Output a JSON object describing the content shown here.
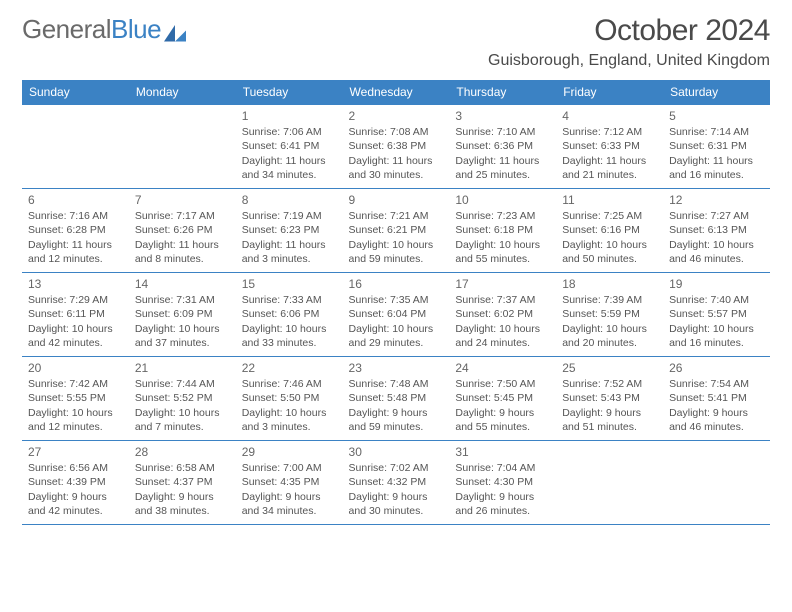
{
  "brand": {
    "word1": "General",
    "word2": "Blue"
  },
  "title": "October 2024",
  "location": "Guisborough, England, United Kingdom",
  "colors": {
    "accent": "#3b82c4",
    "text": "#555",
    "header_text": "#4a4a4a"
  },
  "day_headers": [
    "Sunday",
    "Monday",
    "Tuesday",
    "Wednesday",
    "Thursday",
    "Friday",
    "Saturday"
  ],
  "weeks": [
    [
      null,
      null,
      {
        "n": "1",
        "sr": "Sunrise: 7:06 AM",
        "ss": "Sunset: 6:41 PM",
        "d1": "Daylight: 11 hours",
        "d2": "and 34 minutes."
      },
      {
        "n": "2",
        "sr": "Sunrise: 7:08 AM",
        "ss": "Sunset: 6:38 PM",
        "d1": "Daylight: 11 hours",
        "d2": "and 30 minutes."
      },
      {
        "n": "3",
        "sr": "Sunrise: 7:10 AM",
        "ss": "Sunset: 6:36 PM",
        "d1": "Daylight: 11 hours",
        "d2": "and 25 minutes."
      },
      {
        "n": "4",
        "sr": "Sunrise: 7:12 AM",
        "ss": "Sunset: 6:33 PM",
        "d1": "Daylight: 11 hours",
        "d2": "and 21 minutes."
      },
      {
        "n": "5",
        "sr": "Sunrise: 7:14 AM",
        "ss": "Sunset: 6:31 PM",
        "d1": "Daylight: 11 hours",
        "d2": "and 16 minutes."
      }
    ],
    [
      {
        "n": "6",
        "sr": "Sunrise: 7:16 AM",
        "ss": "Sunset: 6:28 PM",
        "d1": "Daylight: 11 hours",
        "d2": "and 12 minutes."
      },
      {
        "n": "7",
        "sr": "Sunrise: 7:17 AM",
        "ss": "Sunset: 6:26 PM",
        "d1": "Daylight: 11 hours",
        "d2": "and 8 minutes."
      },
      {
        "n": "8",
        "sr": "Sunrise: 7:19 AM",
        "ss": "Sunset: 6:23 PM",
        "d1": "Daylight: 11 hours",
        "d2": "and 3 minutes."
      },
      {
        "n": "9",
        "sr": "Sunrise: 7:21 AM",
        "ss": "Sunset: 6:21 PM",
        "d1": "Daylight: 10 hours",
        "d2": "and 59 minutes."
      },
      {
        "n": "10",
        "sr": "Sunrise: 7:23 AM",
        "ss": "Sunset: 6:18 PM",
        "d1": "Daylight: 10 hours",
        "d2": "and 55 minutes."
      },
      {
        "n": "11",
        "sr": "Sunrise: 7:25 AM",
        "ss": "Sunset: 6:16 PM",
        "d1": "Daylight: 10 hours",
        "d2": "and 50 minutes."
      },
      {
        "n": "12",
        "sr": "Sunrise: 7:27 AM",
        "ss": "Sunset: 6:13 PM",
        "d1": "Daylight: 10 hours",
        "d2": "and 46 minutes."
      }
    ],
    [
      {
        "n": "13",
        "sr": "Sunrise: 7:29 AM",
        "ss": "Sunset: 6:11 PM",
        "d1": "Daylight: 10 hours",
        "d2": "and 42 minutes."
      },
      {
        "n": "14",
        "sr": "Sunrise: 7:31 AM",
        "ss": "Sunset: 6:09 PM",
        "d1": "Daylight: 10 hours",
        "d2": "and 37 minutes."
      },
      {
        "n": "15",
        "sr": "Sunrise: 7:33 AM",
        "ss": "Sunset: 6:06 PM",
        "d1": "Daylight: 10 hours",
        "d2": "and 33 minutes."
      },
      {
        "n": "16",
        "sr": "Sunrise: 7:35 AM",
        "ss": "Sunset: 6:04 PM",
        "d1": "Daylight: 10 hours",
        "d2": "and 29 minutes."
      },
      {
        "n": "17",
        "sr": "Sunrise: 7:37 AM",
        "ss": "Sunset: 6:02 PM",
        "d1": "Daylight: 10 hours",
        "d2": "and 24 minutes."
      },
      {
        "n": "18",
        "sr": "Sunrise: 7:39 AM",
        "ss": "Sunset: 5:59 PM",
        "d1": "Daylight: 10 hours",
        "d2": "and 20 minutes."
      },
      {
        "n": "19",
        "sr": "Sunrise: 7:40 AM",
        "ss": "Sunset: 5:57 PM",
        "d1": "Daylight: 10 hours",
        "d2": "and 16 minutes."
      }
    ],
    [
      {
        "n": "20",
        "sr": "Sunrise: 7:42 AM",
        "ss": "Sunset: 5:55 PM",
        "d1": "Daylight: 10 hours",
        "d2": "and 12 minutes."
      },
      {
        "n": "21",
        "sr": "Sunrise: 7:44 AM",
        "ss": "Sunset: 5:52 PM",
        "d1": "Daylight: 10 hours",
        "d2": "and 7 minutes."
      },
      {
        "n": "22",
        "sr": "Sunrise: 7:46 AM",
        "ss": "Sunset: 5:50 PM",
        "d1": "Daylight: 10 hours",
        "d2": "and 3 minutes."
      },
      {
        "n": "23",
        "sr": "Sunrise: 7:48 AM",
        "ss": "Sunset: 5:48 PM",
        "d1": "Daylight: 9 hours",
        "d2": "and 59 minutes."
      },
      {
        "n": "24",
        "sr": "Sunrise: 7:50 AM",
        "ss": "Sunset: 5:45 PM",
        "d1": "Daylight: 9 hours",
        "d2": "and 55 minutes."
      },
      {
        "n": "25",
        "sr": "Sunrise: 7:52 AM",
        "ss": "Sunset: 5:43 PM",
        "d1": "Daylight: 9 hours",
        "d2": "and 51 minutes."
      },
      {
        "n": "26",
        "sr": "Sunrise: 7:54 AM",
        "ss": "Sunset: 5:41 PM",
        "d1": "Daylight: 9 hours",
        "d2": "and 46 minutes."
      }
    ],
    [
      {
        "n": "27",
        "sr": "Sunrise: 6:56 AM",
        "ss": "Sunset: 4:39 PM",
        "d1": "Daylight: 9 hours",
        "d2": "and 42 minutes."
      },
      {
        "n": "28",
        "sr": "Sunrise: 6:58 AM",
        "ss": "Sunset: 4:37 PM",
        "d1": "Daylight: 9 hours",
        "d2": "and 38 minutes."
      },
      {
        "n": "29",
        "sr": "Sunrise: 7:00 AM",
        "ss": "Sunset: 4:35 PM",
        "d1": "Daylight: 9 hours",
        "d2": "and 34 minutes."
      },
      {
        "n": "30",
        "sr": "Sunrise: 7:02 AM",
        "ss": "Sunset: 4:32 PM",
        "d1": "Daylight: 9 hours",
        "d2": "and 30 minutes."
      },
      {
        "n": "31",
        "sr": "Sunrise: 7:04 AM",
        "ss": "Sunset: 4:30 PM",
        "d1": "Daylight: 9 hours",
        "d2": "and 26 minutes."
      },
      null,
      null
    ]
  ]
}
